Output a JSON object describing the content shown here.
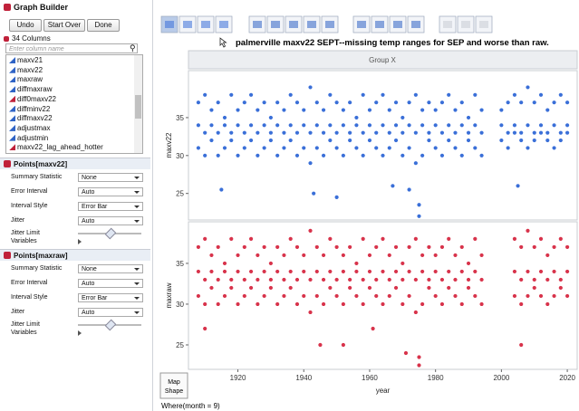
{
  "window": {
    "title": "Graph Builder",
    "buttons": [
      "Undo",
      "Start Over",
      "Done"
    ],
    "column_count": "34 Columns",
    "search_placeholder": "Enter column name",
    "columns": [
      "maxv21",
      "maxv22",
      "maxraw",
      "diffmaxraw",
      "diff0maxv22",
      "diffminv22",
      "diffmaxv22",
      "adjustmax",
      "adjustmin",
      "maxv22_lag_ahead_hotter"
    ]
  },
  "panels": [
    {
      "title": "Points[maxv22]",
      "rows": [
        {
          "label": "Summary Statistic",
          "value": "None"
        },
        {
          "label": "Error Interval",
          "value": "Auto"
        },
        {
          "label": "Interval Style",
          "value": "Error Bar"
        },
        {
          "label": "Jitter",
          "value": "Auto"
        }
      ],
      "jitter_limit": "Jitter Limit",
      "variables": "Variables"
    },
    {
      "title": "Points[maxraw]",
      "rows": [
        {
          "label": "Summary Statistic",
          "value": "None"
        },
        {
          "label": "Error Interval",
          "value": "Auto"
        },
        {
          "label": "Interval Style",
          "value": "Error Bar"
        },
        {
          "label": "Jitter",
          "value": "Auto"
        }
      ],
      "jitter_limit": "Jitter Limit",
      "variables": "Variables"
    }
  ],
  "graph": {
    "title": "palmerville maxv22 SEPT--missing temp ranges for SEP and worse than raw.",
    "group_x": "Group X",
    "map_shape": "Map Shape",
    "where": "Where(month = 9)"
  },
  "chart_data": [
    {
      "type": "scatter",
      "y_label": "maxv22",
      "color": "#3a6fd8",
      "xlim": [
        1905,
        2023
      ],
      "ylim": [
        21.5,
        41.2
      ],
      "yticks": [
        25,
        30,
        35
      ],
      "x": [
        1908,
        1910,
        1912,
        1914,
        1916,
        1918,
        1920,
        1922,
        1924,
        1926,
        1928,
        1930,
        1932,
        1934,
        1936,
        1938,
        1940,
        1942,
        1944,
        1946,
        1948,
        1950,
        1952,
        1954,
        1956,
        1958,
        1960,
        1962,
        1964,
        1966,
        1968,
        1970,
        1972,
        1974,
        1976,
        1978,
        1980,
        1982,
        1984,
        1986,
        1988,
        1990,
        1992,
        1994,
        2000,
        2002,
        2004,
        2006,
        2008,
        2010,
        2012,
        2014,
        2016,
        2018,
        2020,
        1908,
        1910,
        1912,
        1914,
        1916,
        1918,
        1920,
        1922,
        1924,
        1926,
        1928,
        1930,
        1932,
        1934,
        1936,
        1938,
        1940,
        1942,
        1944,
        1946,
        1948,
        1950,
        1952,
        1954,
        1956,
        1958,
        1960,
        1962,
        1964,
        1966,
        1968,
        1970,
        1972,
        1974,
        1976,
        1978,
        1980,
        1982,
        1984,
        1986,
        1988,
        1990,
        1992,
        1994,
        2000,
        2002,
        2004,
        2006,
        2008,
        2010,
        2012,
        2014,
        2016,
        2018,
        2020,
        1908,
        1910,
        1912,
        1914,
        1916,
        1918,
        1920,
        1922,
        1924,
        1926,
        1928,
        1930,
        1932,
        1934,
        1936,
        1938,
        1940,
        1942,
        1944,
        1946,
        1948,
        1950,
        1952,
        1954,
        1956,
        1958,
        1960,
        1962,
        1964,
        1966,
        1968,
        1970,
        1972,
        1974,
        1976,
        1978,
        1980,
        1982,
        1984,
        1986,
        1988,
        1990,
        1992,
        1994,
        2000,
        2002,
        2004,
        2006,
        2008,
        2010,
        2012,
        2014,
        2016,
        2018,
        2020,
        1915,
        1943,
        1950,
        1967,
        1972,
        1975,
        1975,
        2005
      ],
      "values": [
        37,
        38,
        36,
        37,
        35,
        38,
        36,
        37,
        38,
        36,
        37,
        35,
        37,
        36,
        38,
        37,
        36,
        39,
        37,
        36,
        38,
        37,
        36,
        37,
        35,
        38,
        36,
        37,
        38,
        36,
        37,
        35,
        37,
        38,
        36,
        37,
        36,
        37,
        38,
        36,
        37,
        35,
        38,
        36,
        36,
        37,
        38,
        37,
        39,
        37,
        38,
        36,
        37,
        38,
        37,
        31,
        30,
        32,
        30,
        31,
        32,
        30,
        31,
        32,
        30,
        31,
        32,
        30,
        31,
        32,
        30,
        31,
        29,
        31,
        30,
        32,
        31,
        30,
        32,
        31,
        30,
        32,
        31,
        30,
        31,
        32,
        30,
        31,
        29,
        30,
        32,
        31,
        30,
        32,
        31,
        30,
        32,
        31,
        30,
        32,
        31,
        33,
        32,
        31,
        32,
        33,
        32,
        31,
        32,
        33,
        34,
        33,
        34,
        33,
        34,
        33,
        34,
        33,
        34,
        33,
        34,
        33,
        34,
        33,
        34,
        33,
        34,
        33,
        34,
        33,
        34,
        33,
        34,
        33,
        34,
        33,
        34,
        33,
        34,
        33,
        34,
        33,
        34,
        33,
        34,
        33,
        34,
        33,
        34,
        33,
        34,
        33,
        34,
        33,
        34,
        33,
        34,
        33,
        34,
        33,
        34,
        33,
        34,
        33,
        34,
        25.5,
        25,
        24.5,
        26,
        25.5,
        22,
        23.5,
        26
      ]
    },
    {
      "type": "scatter",
      "y_label": "maxraw",
      "x_label": "year",
      "color": "#d8334b",
      "xlim": [
        1905,
        2023
      ],
      "ylim": [
        22,
        40.1
      ],
      "yticks": [
        25,
        30,
        35
      ],
      "xticks": [
        1920,
        1940,
        1960,
        1980,
        2000,
        2020
      ],
      "x": [
        1908,
        1910,
        1912,
        1914,
        1916,
        1918,
        1920,
        1922,
        1924,
        1926,
        1928,
        1930,
        1932,
        1934,
        1936,
        1938,
        1940,
        1942,
        1944,
        1946,
        1948,
        1950,
        1952,
        1954,
        1956,
        1958,
        1960,
        1962,
        1964,
        1966,
        1968,
        1970,
        1972,
        1974,
        1976,
        1978,
        1980,
        1982,
        1984,
        1986,
        1988,
        1990,
        1992,
        1994,
        2004,
        2006,
        2008,
        2010,
        2012,
        2014,
        2016,
        2018,
        2020,
        1908,
        1910,
        1912,
        1914,
        1916,
        1918,
        1920,
        1922,
        1924,
        1926,
        1928,
        1930,
        1932,
        1934,
        1936,
        1938,
        1940,
        1942,
        1944,
        1946,
        1948,
        1950,
        1952,
        1954,
        1956,
        1958,
        1960,
        1962,
        1964,
        1966,
        1968,
        1970,
        1972,
        1974,
        1976,
        1978,
        1980,
        1982,
        1984,
        1986,
        1988,
        1990,
        1992,
        1994,
        2004,
        2006,
        2008,
        2010,
        2012,
        2014,
        2016,
        2018,
        2020,
        1908,
        1910,
        1912,
        1914,
        1916,
        1918,
        1920,
        1922,
        1924,
        1926,
        1928,
        1930,
        1932,
        1934,
        1936,
        1938,
        1940,
        1942,
        1944,
        1946,
        1948,
        1950,
        1952,
        1954,
        1956,
        1958,
        1960,
        1962,
        1964,
        1966,
        1968,
        1970,
        1972,
        1974,
        1976,
        1978,
        1980,
        1982,
        1984,
        1986,
        1988,
        1990,
        1992,
        1994,
        2004,
        2006,
        2008,
        2010,
        2012,
        2014,
        2016,
        2018,
        2020,
        1910,
        1945,
        1952,
        1961,
        1971,
        1975,
        1975,
        2006
      ],
      "values": [
        37,
        38,
        36,
        37,
        35,
        38,
        36,
        37,
        38,
        36,
        37,
        35,
        37,
        36,
        38,
        37,
        36,
        39,
        37,
        36,
        38,
        37,
        36,
        37,
        35,
        38,
        36,
        37,
        38,
        36,
        37,
        35,
        37,
        38,
        36,
        37,
        36,
        37,
        38,
        36,
        37,
        35,
        38,
        36,
        38,
        37,
        39,
        37,
        38,
        36,
        37,
        38,
        37,
        31,
        30,
        32,
        30,
        31,
        32,
        30,
        31,
        32,
        30,
        31,
        32,
        30,
        31,
        32,
        30,
        31,
        29,
        31,
        30,
        32,
        31,
        30,
        32,
        31,
        30,
        32,
        31,
        30,
        31,
        32,
        30,
        31,
        29,
        30,
        32,
        31,
        30,
        32,
        31,
        30,
        32,
        31,
        30,
        31,
        30,
        31,
        32,
        31,
        30,
        31,
        32,
        31,
        34,
        33,
        34,
        33,
        34,
        33,
        34,
        33,
        34,
        33,
        34,
        33,
        34,
        33,
        34,
        33,
        34,
        33,
        34,
        33,
        34,
        33,
        34,
        33,
        34,
        33,
        34,
        33,
        34,
        33,
        34,
        33,
        34,
        33,
        34,
        33,
        34,
        33,
        34,
        33,
        34,
        33,
        34,
        33,
        34,
        33,
        34,
        33,
        34,
        33,
        34,
        33,
        34,
        27,
        25,
        25,
        27,
        24,
        22.5,
        23.5,
        25
      ]
    }
  ]
}
